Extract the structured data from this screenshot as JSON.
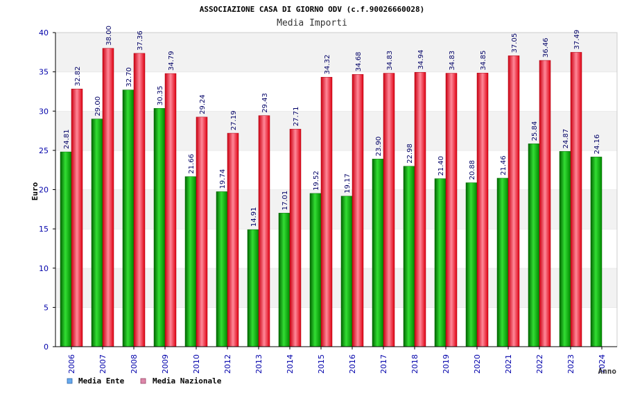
{
  "chart_data": {
    "type": "bar",
    "title": "ASSOCIAZIONE CASA DI GIORNO ODV (c.f.90026660028)",
    "subtitle": "Media Importi",
    "xlabel": "Anno",
    "ylabel": "Euro",
    "ylim": [
      0,
      40
    ],
    "yticks": [
      "0",
      "5",
      "10",
      "15",
      "20",
      "25",
      "30",
      "35",
      "40"
    ],
    "grid": "horizontal bands",
    "legend_position": "bottom-left",
    "categories": [
      "2006",
      "2007",
      "2008",
      "2009",
      "2010",
      "2012",
      "2013",
      "2014",
      "2015",
      "2016",
      "2017",
      "2018",
      "2019",
      "2020",
      "2021",
      "2022",
      "2023",
      "2024"
    ],
    "series": [
      {
        "name": "Media Ente",
        "color": "#00aa00",
        "legend_color": "#66aaee",
        "values": [
          24.81,
          29.0,
          32.7,
          30.35,
          21.66,
          19.74,
          14.91,
          17.01,
          19.52,
          19.17,
          23.9,
          22.98,
          21.4,
          20.88,
          21.46,
          25.84,
          24.87,
          24.16
        ],
        "labels": [
          "24.81",
          "29.00",
          "32.70",
          "30.35",
          "21.66",
          "19.74",
          "14.91",
          "17.01",
          "19.52",
          "19.17",
          "23.90",
          "22.98",
          "21.40",
          "20.88",
          "21.46",
          "25.84",
          "24.87",
          "24.16"
        ]
      },
      {
        "name": "Media Nazionale",
        "color": "#ee1122",
        "legend_color": "#dd88aa",
        "values": [
          32.82,
          38.0,
          37.36,
          34.79,
          29.24,
          27.19,
          29.43,
          27.71,
          34.32,
          34.68,
          34.83,
          34.94,
          34.83,
          34.85,
          37.05,
          36.46,
          37.49,
          null
        ],
        "labels": [
          "32.82",
          "38.00",
          "37.36",
          "34.79",
          "29.24",
          "27.19",
          "29.43",
          "27.71",
          "34.32",
          "34.68",
          "34.83",
          "34.94",
          "34.83",
          "34.85",
          "37.05",
          "36.46",
          "37.49",
          ""
        ]
      }
    ]
  }
}
